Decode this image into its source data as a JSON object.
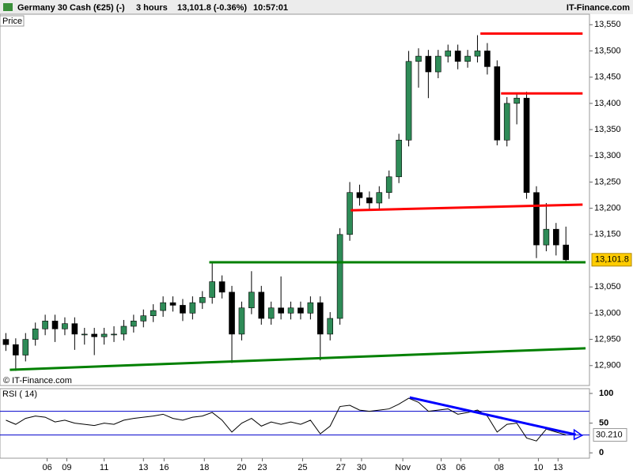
{
  "header": {
    "instrument": "Germany 30 Cash (€25) (-)",
    "timeframe": "3 hours",
    "quote": "13,101.8 (-0.36%)",
    "time": "10:57:01",
    "brand": "IT-Finance.com",
    "panel_label": "Price",
    "copyright": "© IT-Finance.com"
  },
  "chart_data": [
    {
      "type": "candlestick",
      "up_color": "#2e8b57",
      "down_color": "#000000",
      "open": [
        12950,
        12940,
        12920,
        12950,
        12970,
        12985,
        12970,
        12980,
        12960,
        12960,
        12955,
        12960,
        12960,
        12975,
        12985,
        12995,
        13005,
        13020,
        13015,
        13000,
        13020,
        13030,
        13060,
        13040,
        12960,
        13010,
        13040,
        12990,
        13010,
        13000,
        13010,
        13000,
        13020,
        12960,
        12990,
        13150,
        13230,
        13220,
        13210,
        13230,
        13260,
        13330,
        13480,
        13490,
        13460,
        13490,
        13500,
        13480,
        13490,
        13500,
        13470,
        13330,
        13400,
        13410,
        13230,
        13130,
        13160,
        13130
      ],
      "high": [
        12962,
        12952,
        12962,
        12982,
        12997,
        12997,
        12992,
        12992,
        12972,
        12972,
        12972,
        12975,
        12987,
        12997,
        13007,
        13017,
        13032,
        13032,
        13027,
        13032,
        13042,
        13095,
        13072,
        13052,
        13022,
        13080,
        13052,
        13022,
        13070,
        13022,
        13022,
        13032,
        13032,
        13002,
        13162,
        13250,
        13245,
        13232,
        13242,
        13272,
        13342,
        13500,
        13505,
        13502,
        13502,
        13512,
        13512,
        13502,
        13530,
        13515,
        13482,
        13412,
        13420,
        13422,
        13242,
        13210,
        13172,
        13165
      ],
      "low": [
        12928,
        12890,
        12908,
        12938,
        12958,
        12945,
        12958,
        12930,
        12940,
        12920,
        12940,
        12945,
        12948,
        12963,
        12973,
        12983,
        12993,
        13003,
        12985,
        12988,
        13008,
        13018,
        13028,
        12905,
        12948,
        12998,
        12978,
        12978,
        12988,
        12988,
        12988,
        12988,
        12910,
        12948,
        12978,
        13138,
        13205,
        13198,
        13198,
        13218,
        13248,
        13318,
        13430,
        13410,
        13448,
        13478,
        13465,
        13468,
        13478,
        13455,
        13320,
        13318,
        13360,
        13218,
        13105,
        13118,
        13110,
        13095
      ],
      "close": [
        12940,
        12920,
        12950,
        12970,
        12985,
        12970,
        12980,
        12960,
        12960,
        12955,
        12960,
        12960,
        12975,
        12985,
        12995,
        13005,
        13020,
        13015,
        13000,
        13020,
        13030,
        13060,
        13040,
        12960,
        13010,
        13040,
        12990,
        13010,
        13000,
        13010,
        13000,
        13020,
        12960,
        12990,
        13150,
        13230,
        13220,
        13210,
        13230,
        13260,
        13330,
        13480,
        13490,
        13460,
        13490,
        13500,
        13480,
        13490,
        13500,
        13470,
        13330,
        13400,
        13410,
        13230,
        13130,
        13160,
        13130,
        13101.8
      ],
      "last_label": "13,101.8",
      "xlim": [
        -0.6,
        59.4
      ],
      "ylim": [
        12862,
        13570
      ],
      "yticks": [
        {
          "value": 12900,
          "label": "12,900"
        },
        {
          "value": 12950,
          "label": "12,950"
        },
        {
          "value": 13000,
          "label": "13,000"
        },
        {
          "value": 13050,
          "label": "13,050"
        },
        {
          "value": 13150,
          "label": "13,150"
        },
        {
          "value": 13200,
          "label": "13,200"
        },
        {
          "value": 13250,
          "label": "13,250"
        },
        {
          "value": 13300,
          "label": "13,300"
        },
        {
          "value": 13350,
          "label": "13,350"
        },
        {
          "value": 13400,
          "label": "13,400"
        },
        {
          "value": 13450,
          "label": "13,450"
        },
        {
          "value": 13500,
          "label": "13,500"
        },
        {
          "value": 13550,
          "label": "13,550"
        }
      ],
      "trend_lines": [
        {
          "color": "#ff0000",
          "x": [
            48.3,
            58.7
          ],
          "y": [
            13533,
            13533
          ]
        },
        {
          "color": "#ff0000",
          "x": [
            50.4,
            58.7
          ],
          "y": [
            13419,
            13419
          ]
        },
        {
          "color": "#ff0000",
          "x": [
            35.1,
            58.7
          ],
          "y": [
            13196,
            13207
          ]
        },
        {
          "color": "#008000",
          "x": [
            20.7,
            59.0
          ],
          "y": [
            13097,
            13097
          ]
        },
        {
          "color": "#008000",
          "x": [
            0.4,
            59.0
          ],
          "y": [
            12892,
            12933
          ]
        }
      ]
    },
    {
      "type": "line",
      "label": "RSI ( 14)",
      "color": "#000000",
      "band_color": "#0000cc",
      "values": [
        55,
        48,
        58,
        62,
        60,
        52,
        55,
        50,
        48,
        46,
        50,
        48,
        55,
        58,
        60,
        62,
        65,
        58,
        55,
        60,
        62,
        68,
        55,
        35,
        50,
        58,
        45,
        52,
        48,
        52,
        48,
        55,
        32,
        45,
        78,
        80,
        72,
        70,
        72,
        74,
        82,
        92,
        85,
        70,
        72,
        74,
        65,
        68,
        72,
        62,
        35,
        48,
        50,
        25,
        20,
        40,
        35,
        30.21
      ],
      "last_label": "30.210",
      "bands": [
        70,
        30
      ],
      "xlim": [
        -0.6,
        59.4
      ],
      "ylim": [
        -9,
        108
      ],
      "yticks": [
        0,
        50,
        100
      ],
      "trend_lines": [
        {
          "color": "#0000ff",
          "x": [
            41.1,
            58.0
          ],
          "y": [
            93.3,
            30.7
          ]
        }
      ],
      "xticks": [
        {
          "value": 4.2,
          "label": "06"
        },
        {
          "value": 6.2,
          "label": "09"
        },
        {
          "value": 10.0,
          "label": "11"
        },
        {
          "value": 14.0,
          "label": "13"
        },
        {
          "value": 16.1,
          "label": "16"
        },
        {
          "value": 20.2,
          "label": "18"
        },
        {
          "value": 24.0,
          "label": "20"
        },
        {
          "value": 26.1,
          "label": "23"
        },
        {
          "value": 30.2,
          "label": "25"
        },
        {
          "value": 34.1,
          "label": "27"
        },
        {
          "value": 36.2,
          "label": "30"
        },
        {
          "value": 40.4,
          "label": "Nov"
        },
        {
          "value": 44.3,
          "label": "03"
        },
        {
          "value": 46.3,
          "label": "06"
        },
        {
          "value": 50.2,
          "label": "08"
        },
        {
          "value": 54.2,
          "label": "10"
        },
        {
          "value": 56.2,
          "label": "13"
        }
      ]
    }
  ]
}
